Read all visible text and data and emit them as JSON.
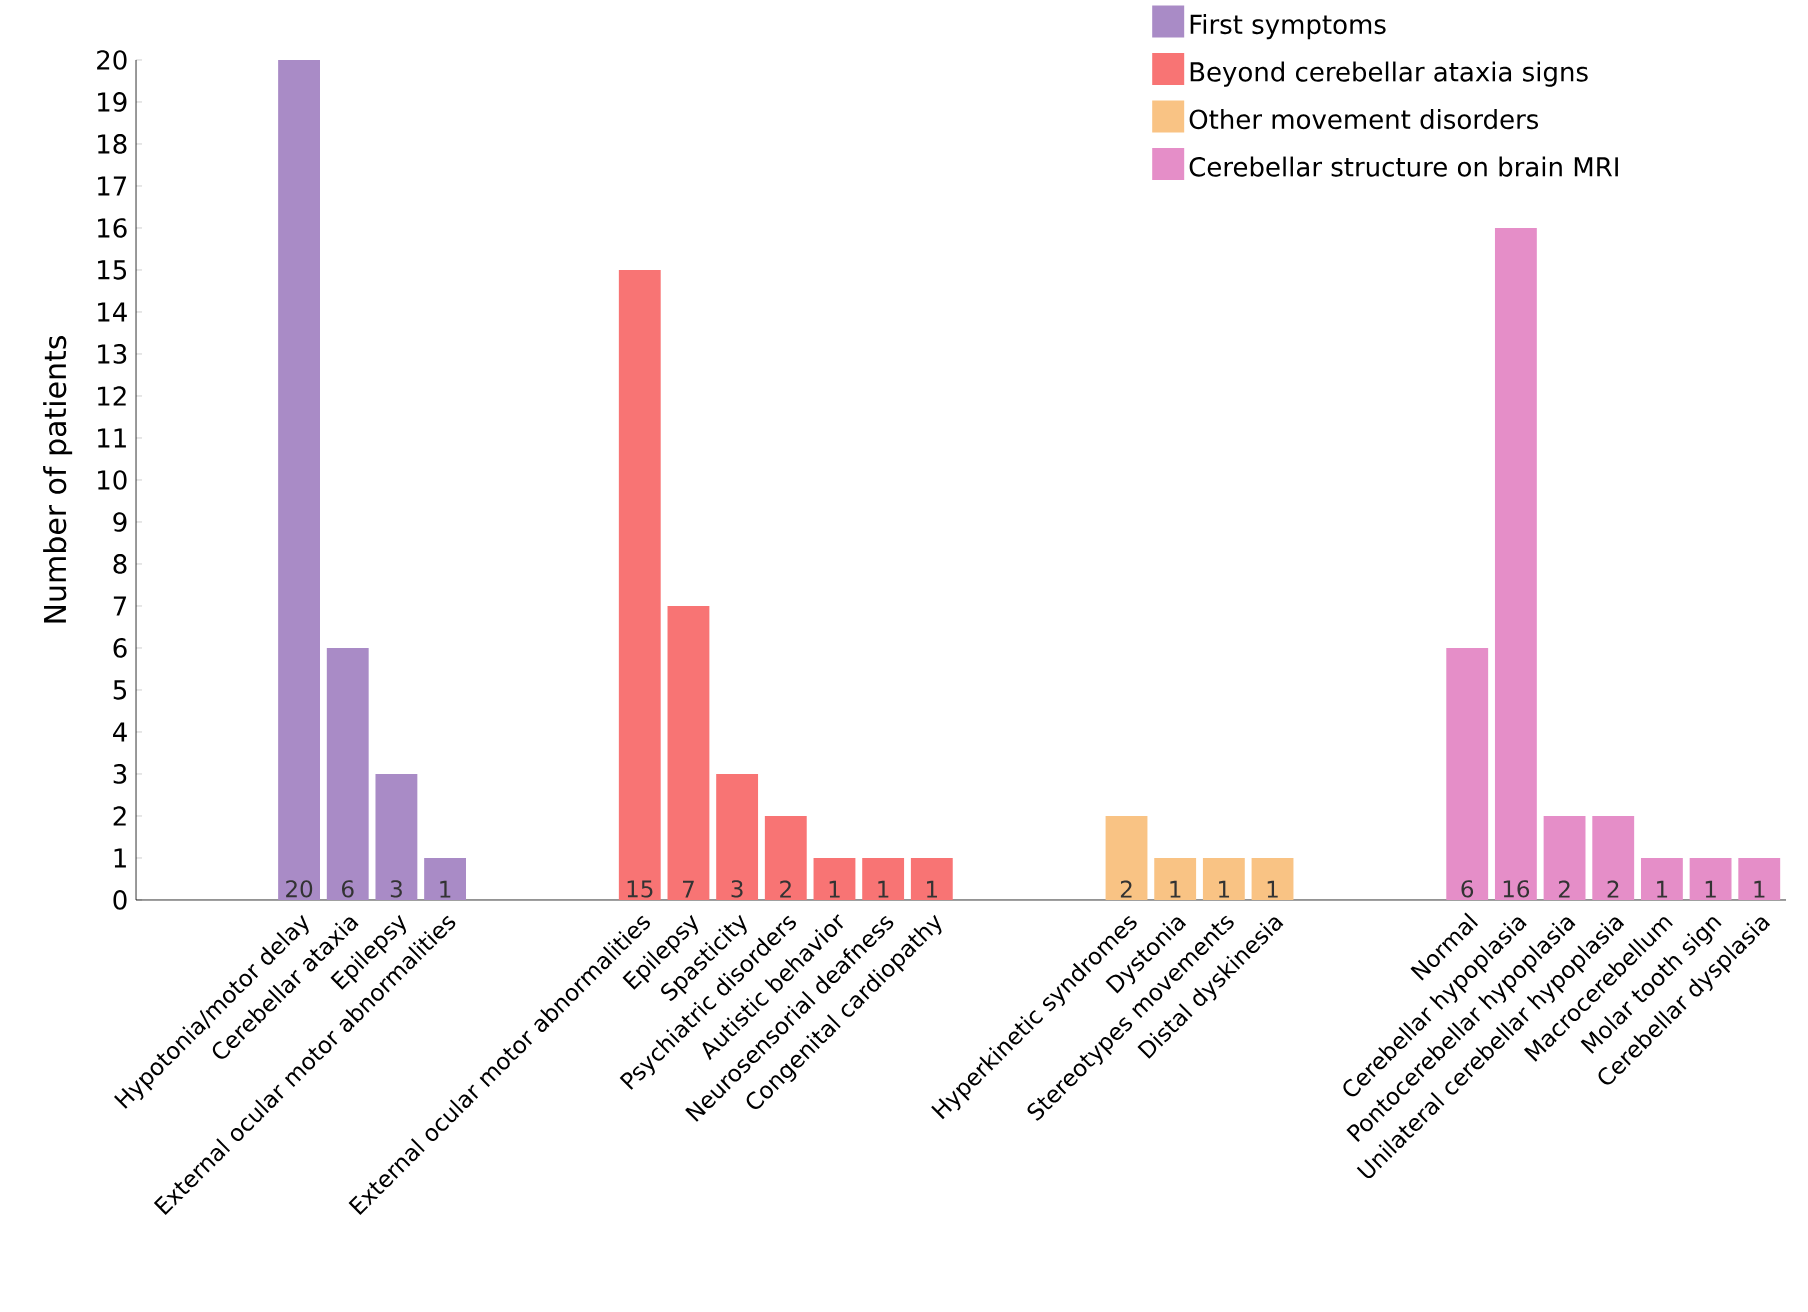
{
  "chart_data": {
    "type": "bar",
    "ylabel": "Number of patients",
    "categories": [
      "Hypotonia/motor delay",
      "Cerebellar ataxia",
      "Epilepsy",
      "External ocular motor abnormalities",
      null,
      null,
      null,
      "External ocular motor abnormalities",
      "Epilepsy",
      "Spasticity",
      "Psychiatric disorders",
      "Autistic behavior",
      "Neurosensorial deafness",
      "Congenital cardiopathy",
      null,
      null,
      null,
      "Hyperkinetic syndromes",
      "Dystonia",
      "Stereotypes movements",
      "Distal dyskinesia",
      null,
      null,
      null,
      "Normal",
      "Cerebellar hypoplasia",
      "Pontocerebellar hypoplasia",
      "Unilateral cerebellar hypoplasia",
      "Macrocerebellum",
      "Molar tooth sign",
      "Cerebellar dysplasia"
    ],
    "series": [
      {
        "name": "First symptoms",
        "color": "#a98bc6",
        "values": [
          20,
          6,
          3,
          1,
          null,
          null,
          null,
          null,
          null,
          null,
          null,
          null,
          null,
          null,
          null,
          null,
          null,
          null,
          null,
          null,
          null,
          null,
          null,
          null,
          null,
          null,
          null,
          null,
          null,
          null,
          null
        ]
      },
      {
        "name": "Beyond cerebellar ataxia signs",
        "color": "#f87474",
        "values": [
          null,
          null,
          null,
          null,
          null,
          null,
          null,
          15,
          7,
          3,
          2,
          1,
          1,
          1,
          null,
          null,
          null,
          null,
          null,
          null,
          null,
          null,
          null,
          null,
          null,
          null,
          null,
          null,
          null,
          null,
          null
        ]
      },
      {
        "name": "Other movement disorders",
        "color": "#f9c384",
        "values": [
          null,
          null,
          null,
          null,
          null,
          null,
          null,
          null,
          null,
          null,
          null,
          null,
          null,
          null,
          null,
          null,
          null,
          2,
          1,
          1,
          1,
          null,
          null,
          null,
          null,
          null,
          null,
          null,
          null,
          null,
          null
        ]
      },
      {
        "name": "Cerebellar structure on brain MRI",
        "color": "#e58ec8",
        "values": [
          null,
          null,
          null,
          null,
          null,
          null,
          null,
          null,
          null,
          null,
          null,
          null,
          null,
          null,
          null,
          null,
          null,
          null,
          null,
          null,
          null,
          null,
          null,
          null,
          6,
          16,
          2,
          2,
          1,
          1,
          1
        ]
      }
    ],
    "ylim": [
      0,
      20
    ],
    "yticks": [
      0,
      1,
      2,
      3,
      4,
      5,
      6,
      7,
      8,
      9,
      10,
      11,
      12,
      13,
      14,
      15,
      16,
      17,
      18,
      19,
      20
    ],
    "data_labels": true,
    "legend": "top right"
  }
}
